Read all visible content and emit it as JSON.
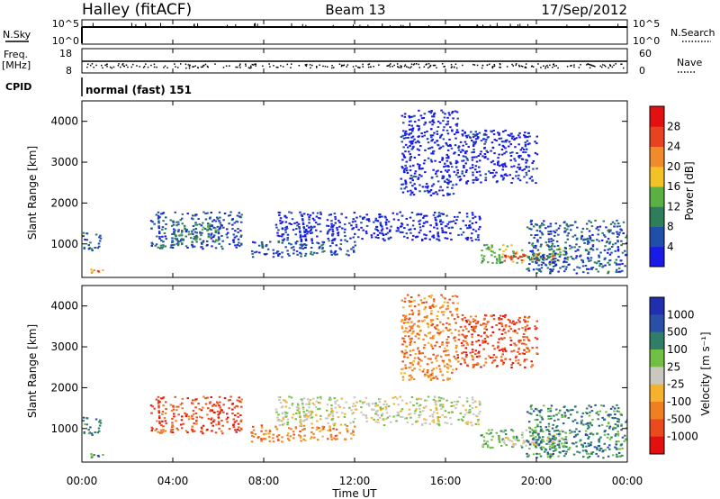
{
  "header": {
    "station": "Halley (fitACF)",
    "beam": "Beam 13",
    "date": "17/Sep/2012"
  },
  "strip_labels": {
    "nsky": "N.Sky",
    "nsky_ticks": [
      "10^5",
      "10^0"
    ],
    "nsearch": "N.Search",
    "nsearch_ticks": [
      "10^5",
      "10^0"
    ],
    "freq_line1": "Freq.",
    "freq_line2": "[MHz]",
    "freq_ticks": [
      "18",
      "8"
    ],
    "nave": "Nave",
    "nave_ticks": [
      "60",
      "0"
    ],
    "cpid": "CPID",
    "cpid_value": "normal (fast) 151"
  },
  "colors": {
    "power": [
      "#1a1ae6",
      "#1f4fa8",
      "#2e7d5b",
      "#5bb044",
      "#f2c227",
      "#f08a2a",
      "#e8431f",
      "#e31010"
    ],
    "velocity": [
      "#e31010",
      "#ea4a1c",
      "#f07f22",
      "#f5b22e",
      "#c8c8c0",
      "#72c043",
      "#2f7f68",
      "#2a4fa6",
      "#1f2fb0"
    ]
  },
  "chart_data": [
    {
      "type": "heatmap",
      "panel": "power",
      "xlabel": "",
      "ylabel": "Slant Range [km]",
      "xlim": [
        0,
        24
      ],
      "ylim": [
        180,
        4500
      ],
      "y_ticks": [
        "1000",
        "2000",
        "3000",
        "4000"
      ],
      "colorbar": {
        "label": "Power [dB]",
        "levels": [
          0,
          4,
          8,
          12,
          16,
          20,
          24,
          28,
          32
        ],
        "tick_labels": [
          "4",
          "8",
          "12",
          "16",
          "20",
          "24",
          "28"
        ]
      },
      "regions": [
        {
          "t": [
            0.0,
            0.9
          ],
          "r": [
            280,
            420
          ],
          "level": 5
        },
        {
          "t": [
            0.0,
            0.8
          ],
          "r": [
            850,
            1300
          ],
          "level": 1
        },
        {
          "t": [
            3.0,
            7.0
          ],
          "r": [
            900,
            1800
          ],
          "level": 1
        },
        {
          "t": [
            4.0,
            6.0
          ],
          "r": [
            1000,
            1500
          ],
          "level": 2
        },
        {
          "t": [
            7.4,
            12.0
          ],
          "r": [
            700,
            1100
          ],
          "level": 1
        },
        {
          "t": [
            8.5,
            17.5
          ],
          "r": [
            1100,
            1800
          ],
          "level": 0
        },
        {
          "t": [
            14.0,
            16.5
          ],
          "r": [
            2200,
            4300
          ],
          "level": 0
        },
        {
          "t": [
            16.5,
            20.0
          ],
          "r": [
            2500,
            3800
          ],
          "level": 0
        },
        {
          "t": [
            17.5,
            21.5
          ],
          "r": [
            550,
            1000
          ],
          "level": 3
        },
        {
          "t": [
            18.5,
            21.0
          ],
          "r": [
            600,
            800
          ],
          "level": 6
        },
        {
          "t": [
            19.5,
            24.0
          ],
          "r": [
            300,
            1600
          ],
          "level": 1
        }
      ]
    },
    {
      "type": "heatmap",
      "panel": "velocity",
      "xlabel": "Time UT",
      "ylabel": "Slant Range [km]",
      "xlim": [
        0,
        24
      ],
      "ylim": [
        180,
        4500
      ],
      "x_ticks": [
        "00:00",
        "04:00",
        "08:00",
        "12:00",
        "16:00",
        "20:00",
        "00:00"
      ],
      "y_ticks": [
        "1000",
        "2000",
        "3000",
        "4000"
      ],
      "colorbar": {
        "label": "Velocity [m s⁻¹]",
        "tick_labels": [
          "1000",
          "500",
          "100",
          "25",
          "-25",
          "-100",
          "-500",
          "-1000"
        ]
      },
      "regions": [
        {
          "t": [
            0.0,
            0.9
          ],
          "r": [
            280,
            420
          ],
          "level": 6
        },
        {
          "t": [
            0.0,
            0.8
          ],
          "r": [
            850,
            1300
          ],
          "level": 6
        },
        {
          "t": [
            3.0,
            7.0
          ],
          "r": [
            900,
            1800
          ],
          "level": 1
        },
        {
          "t": [
            7.4,
            12.0
          ],
          "r": [
            700,
            1100
          ],
          "level": 2
        },
        {
          "t": [
            8.5,
            17.5
          ],
          "r": [
            1100,
            1800
          ],
          "level": 4
        },
        {
          "t": [
            14.0,
            16.5
          ],
          "r": [
            2200,
            4300
          ],
          "level": 2
        },
        {
          "t": [
            16.5,
            20.0
          ],
          "r": [
            2500,
            3800
          ],
          "level": 1
        },
        {
          "t": [
            17.5,
            21.5
          ],
          "r": [
            550,
            1000
          ],
          "level": 5
        },
        {
          "t": [
            18.5,
            21.0
          ],
          "r": [
            600,
            800
          ],
          "level": 4
        },
        {
          "t": [
            19.5,
            24.0
          ],
          "r": [
            300,
            1600
          ],
          "level": 6
        }
      ]
    }
  ]
}
